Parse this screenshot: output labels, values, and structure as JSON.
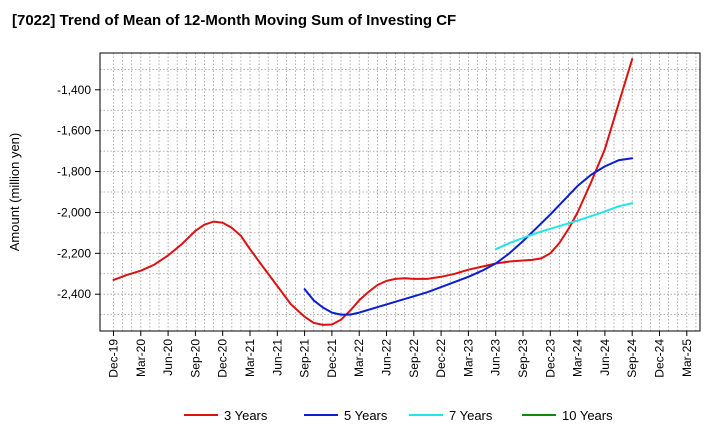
{
  "chart_data": {
    "type": "line",
    "title": "[7022]  Trend of Mean of 12-Month Moving Sum of Investing CF",
    "xlabel": "",
    "ylabel": "Amount (million yen)",
    "ylim": [
      -2580,
      -1220
    ],
    "yticks": [
      -1400,
      -1600,
      -1800,
      -2000,
      -2200,
      -2400
    ],
    "categories": [
      "Dec-19",
      "Mar-20",
      "Jun-20",
      "Sep-20",
      "Dec-20",
      "Mar-21",
      "Jun-21",
      "Sep-21",
      "Dec-21",
      "Mar-22",
      "Jun-22",
      "Sep-22",
      "Dec-22",
      "Mar-23",
      "Jun-23",
      "Sep-23",
      "Dec-23",
      "Mar-24",
      "Jun-24",
      "Sep-24",
      "Dec-24",
      "Mar-25"
    ],
    "grid": true,
    "legend_position": "bottom",
    "series": [
      {
        "name": "3 Years",
        "color": "#dd1111",
        "x": [
          0,
          0.5,
          1,
          1.5,
          2,
          2.5,
          3,
          3.33,
          3.67,
          4,
          4.33,
          4.67,
          5,
          5.5,
          6,
          6.5,
          7,
          7.33,
          7.67,
          8,
          8.33,
          8.67,
          9,
          9.33,
          9.67,
          10,
          10.33,
          10.67,
          11,
          11.5,
          12,
          12.5,
          13,
          13.5,
          14,
          14.5,
          15,
          15.33,
          15.67,
          16,
          16.33,
          16.67,
          17,
          17.5,
          18,
          18.5,
          19
        ],
        "y": [
          -2330,
          -2305,
          -2285,
          -2255,
          -2210,
          -2155,
          -2090,
          -2060,
          -2045,
          -2050,
          -2075,
          -2115,
          -2180,
          -2270,
          -2360,
          -2450,
          -2510,
          -2540,
          -2550,
          -2548,
          -2525,
          -2480,
          -2430,
          -2390,
          -2355,
          -2335,
          -2325,
          -2322,
          -2325,
          -2325,
          -2315,
          -2300,
          -2280,
          -2265,
          -2250,
          -2240,
          -2235,
          -2232,
          -2225,
          -2200,
          -2150,
          -2080,
          -2000,
          -1850,
          -1690,
          -1470,
          -1250
        ]
      },
      {
        "name": "5 Years",
        "color": "#0b1fd1",
        "x": [
          7,
          7.33,
          7.67,
          8,
          8.33,
          8.67,
          9,
          9.5,
          10,
          10.5,
          11,
          11.5,
          12,
          12.5,
          13,
          13.5,
          14,
          14.5,
          15,
          15.5,
          16,
          16.5,
          17,
          17.5,
          18,
          18.5,
          19
        ],
        "y": [
          -2375,
          -2430,
          -2465,
          -2490,
          -2500,
          -2500,
          -2490,
          -2470,
          -2450,
          -2430,
          -2410,
          -2390,
          -2365,
          -2340,
          -2315,
          -2285,
          -2250,
          -2200,
          -2140,
          -2075,
          -2010,
          -1940,
          -1870,
          -1815,
          -1775,
          -1745,
          -1735
        ]
      },
      {
        "name": "7 Years",
        "color": "#22e5e5",
        "x": [
          14,
          14.5,
          15,
          15.5,
          16,
          16.5,
          17,
          17.5,
          18,
          18.5,
          19
        ],
        "y": [
          -2180,
          -2150,
          -2125,
          -2100,
          -2080,
          -2060,
          -2040,
          -2018,
          -1995,
          -1970,
          -1955
        ]
      },
      {
        "name": "10 Years",
        "color": "#118811",
        "x": [],
        "y": []
      }
    ]
  }
}
